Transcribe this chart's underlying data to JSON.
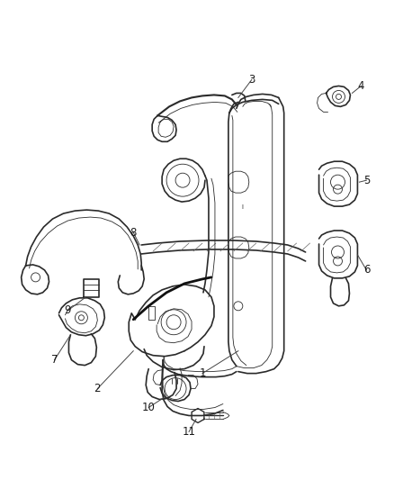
{
  "bg_color": "#ffffff",
  "line_color": "#2a2a2a",
  "label_color": "#1a1a1a",
  "label_fontsize": 8.5,
  "fig_width": 4.38,
  "fig_height": 5.33,
  "dpi": 100
}
